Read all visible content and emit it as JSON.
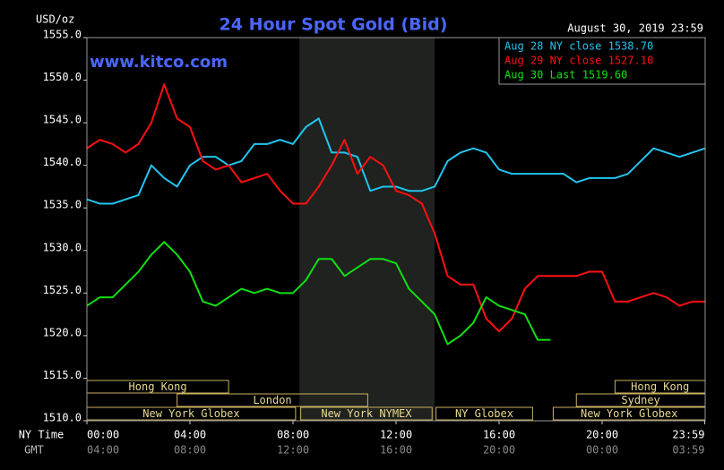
{
  "chart_data": {
    "type": "line",
    "title": "24 Hour Spot Gold (Bid)",
    "subtitle": "August 30, 2019 23:59",
    "y_label": "USD/oz",
    "watermark": "www.kitco.com",
    "x_label": "NY Time",
    "x2_label": "GMT",
    "x": [
      0,
      0.5,
      1,
      1.5,
      2,
      2.5,
      3,
      3.5,
      4,
      4.5,
      5,
      5.5,
      6,
      6.5,
      7,
      7.5,
      8,
      8.5,
      9,
      9.5,
      10,
      10.5,
      11,
      11.5,
      12,
      12.5,
      13,
      13.5,
      14,
      14.5,
      15,
      15.5,
      16,
      16.5,
      17,
      17.5,
      18,
      18.5,
      19,
      19.5,
      20,
      20.5,
      21,
      21.5,
      22,
      22.5,
      23,
      23.5,
      24
    ],
    "series": [
      {
        "name": "Aug 28 NY close 1538.70",
        "color": "#22c4ee",
        "values": [
          1536,
          1535.5,
          1535.5,
          1536,
          1536.5,
          1540,
          1538.5,
          1537.5,
          1540,
          1541,
          1541,
          1540,
          1540.5,
          1542.5,
          1542.5,
          1543,
          1542.5,
          1544.5,
          1545.5,
          1541.5,
          1541.5,
          1541,
          1537,
          1537.5,
          1537.5,
          1537,
          1537,
          1537.5,
          1540.5,
          1541.5,
          1542,
          1541.5,
          1539.5,
          1539,
          1539,
          1539,
          1539,
          1539,
          1538,
          1538.5,
          1538.5,
          1538.5,
          1539,
          1540.5,
          1542,
          1541.5,
          1541,
          1541.5,
          1542
        ]
      },
      {
        "name": "Aug 29 NY close 1527.10",
        "color": "#ff1010",
        "values": [
          1542,
          1543,
          1542.5,
          1541.5,
          1542.5,
          1545,
          1549.5,
          1545.5,
          1544.5,
          1540.5,
          1539.5,
          1540,
          1538,
          1538.5,
          1539,
          1537,
          1535.5,
          1535.5,
          1537.5,
          1540,
          1543,
          1539,
          1541,
          1540,
          1537,
          1536.5,
          1535.5,
          1532,
          1527,
          1526,
          1526,
          1522,
          1520.5,
          1522,
          1525.5,
          1527,
          1527,
          1527,
          1527,
          1527.5,
          1527.5,
          1524,
          1524,
          1524.5,
          1525,
          1524.5,
          1523.5,
          1524,
          1524
        ]
      },
      {
        "name": "Aug 30 Last 1519.60",
        "color": "#10e010",
        "values": [
          1523.5,
          1524.5,
          1524.5,
          1526,
          1527.5,
          1529.5,
          1531,
          1529.5,
          1527.5,
          1524,
          1523.5,
          1524.5,
          1525.5,
          1525,
          1525.5,
          1525,
          1525,
          1526.5,
          1529,
          1529,
          1527,
          1528,
          1529,
          1529,
          1528.5,
          1525.5,
          1524,
          1522.5,
          1519,
          1520,
          1521.5,
          1524.5,
          1523.5,
          1523,
          1522.5,
          1519.5,
          1519.5,
          null,
          null,
          null,
          null,
          null,
          null,
          null,
          null,
          null,
          null,
          null,
          null
        ]
      }
    ],
    "xlim": [
      0,
      24
    ],
    "xticks": [
      {
        "value": 0,
        "label": "00:00"
      },
      {
        "value": 4,
        "label": "04:00"
      },
      {
        "value": 8,
        "label": "08:00"
      },
      {
        "value": 12,
        "label": "12:00"
      },
      {
        "value": 16,
        "label": "16:00"
      },
      {
        "value": 20,
        "label": "20:00"
      },
      {
        "value": 23.983,
        "label": "23:59"
      }
    ],
    "gmt_labels": [
      "04:00",
      "08:00",
      "12:00",
      "16:00",
      "20:00",
      "00:00",
      "03:59"
    ],
    "ylim": [
      1510,
      1555
    ],
    "yticks": [
      {
        "value": 1510,
        "label": "1510.0"
      },
      {
        "value": 1515,
        "label": "1515.0"
      },
      {
        "value": 1520,
        "label": "1520.0"
      },
      {
        "value": 1525,
        "label": "1525.0"
      },
      {
        "value": 1530,
        "label": "1530.0"
      },
      {
        "value": 1535,
        "label": "1535.0"
      },
      {
        "value": 1540,
        "label": "1540.0"
      },
      {
        "value": 1545,
        "label": "1545.0"
      },
      {
        "value": 1550,
        "label": "1550.0"
      },
      {
        "value": 1555,
        "label": "1555.0"
      }
    ],
    "highlight": [
      8.25,
      13.5
    ],
    "sessions": [
      [
        {
          "label": "Hong Kong",
          "start": 0,
          "end": 5.5
        },
        {
          "label": "Hong Kong",
          "start": 20.5,
          "end": 24
        }
      ],
      [
        {
          "label": "London",
          "start": 3.5,
          "end": 10.9
        },
        {
          "label": "Sydney",
          "start": 19,
          "end": 24
        }
      ],
      [
        {
          "label": "New York Globex",
          "start": 0,
          "end": 8.1
        },
        {
          "label": "New York NYMEX",
          "start": 8.3,
          "end": 13.4
        },
        {
          "label": "NY Globex",
          "start": 13.55,
          "end": 17.3
        },
        {
          "label": "New York Globex",
          "start": 18.1,
          "end": 24
        }
      ]
    ],
    "grid": false,
    "legend": "top-right"
  }
}
